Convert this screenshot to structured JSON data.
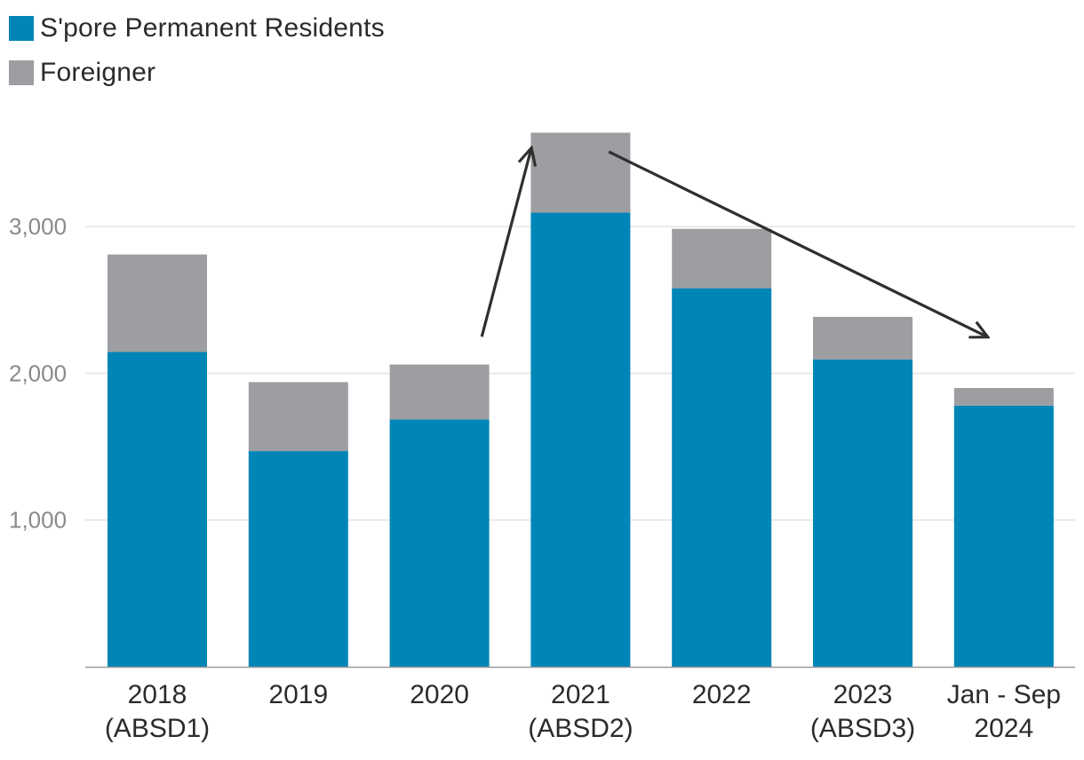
{
  "colors": {
    "pr": "#0085b7",
    "foreigner": "#9d9ea2",
    "grid": "#e3e3e3",
    "axis": "#9a9a9a",
    "arrow": "#2f2f2f"
  },
  "legend": {
    "items": [
      {
        "label": "S'pore Permanent Residents",
        "color_key": "pr"
      },
      {
        "label": "Foreigner",
        "color_key": "foreigner"
      }
    ]
  },
  "chart_data": {
    "type": "bar",
    "stacked": true,
    "categories": [
      [
        "2018",
        "(ABSD1)"
      ],
      [
        "2019"
      ],
      [
        "2020"
      ],
      [
        "2021",
        "(ABSD2)"
      ],
      [
        "2022"
      ],
      [
        "2023",
        "(ABSD3)"
      ],
      [
        "Jan - Sep",
        "2024"
      ]
    ],
    "series": [
      {
        "name": "S'pore Permanent Residents",
        "color_key": "pr",
        "values": [
          2145,
          1470,
          1685,
          3095,
          2580,
          2095,
          1780
        ]
      },
      {
        "name": "Foreigner",
        "color_key": "foreigner",
        "values": [
          665,
          470,
          375,
          545,
          405,
          290,
          120
        ]
      }
    ],
    "yticks": [
      1000,
      2000,
      3000
    ],
    "ytick_labels": [
      "1,000",
      "2,000",
      "3,000"
    ],
    "ylim": [
      0,
      3650
    ],
    "grid": true,
    "title": "",
    "xlabel": "",
    "ylabel": "",
    "legend_position": "top-left",
    "annotations": [
      {
        "type": "arrow",
        "from": {
          "x": 2.3,
          "y": 2250
        },
        "to": {
          "x": 2.65,
          "y": 3530
        },
        "description": "rise"
      },
      {
        "type": "arrow",
        "from": {
          "x": 3.2,
          "y": 3510
        },
        "to": {
          "x": 5.88,
          "y": 2250
        },
        "description": "decline"
      }
    ]
  }
}
